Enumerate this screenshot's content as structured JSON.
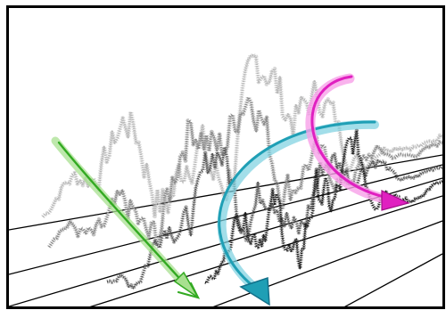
{
  "figure": {
    "panels": 1,
    "colors": {
      "frame": "#000000",
      "baselines": "#000000",
      "series_light": "#b8b8b8",
      "series_mid": "#8a8a8a",
      "series_dark": "#555555",
      "series_black": "#1a1a1a",
      "arrow_green": "#33aa22",
      "arrow_green_light": "#a8e090",
      "arrow_teal": "#1f9fb5",
      "arrow_teal_light": "#7ad0e0",
      "arrow_magenta": "#e020c0",
      "arrow_magenta_light": "#f7a0e8"
    },
    "series_style": "dotted",
    "arrows": [
      {
        "name": "green-arrow",
        "direction": "down-right"
      },
      {
        "name": "teal-arrow",
        "direction": "curved-down"
      },
      {
        "name": "magenta-arrow",
        "direction": "curved-down-right"
      }
    ]
  }
}
